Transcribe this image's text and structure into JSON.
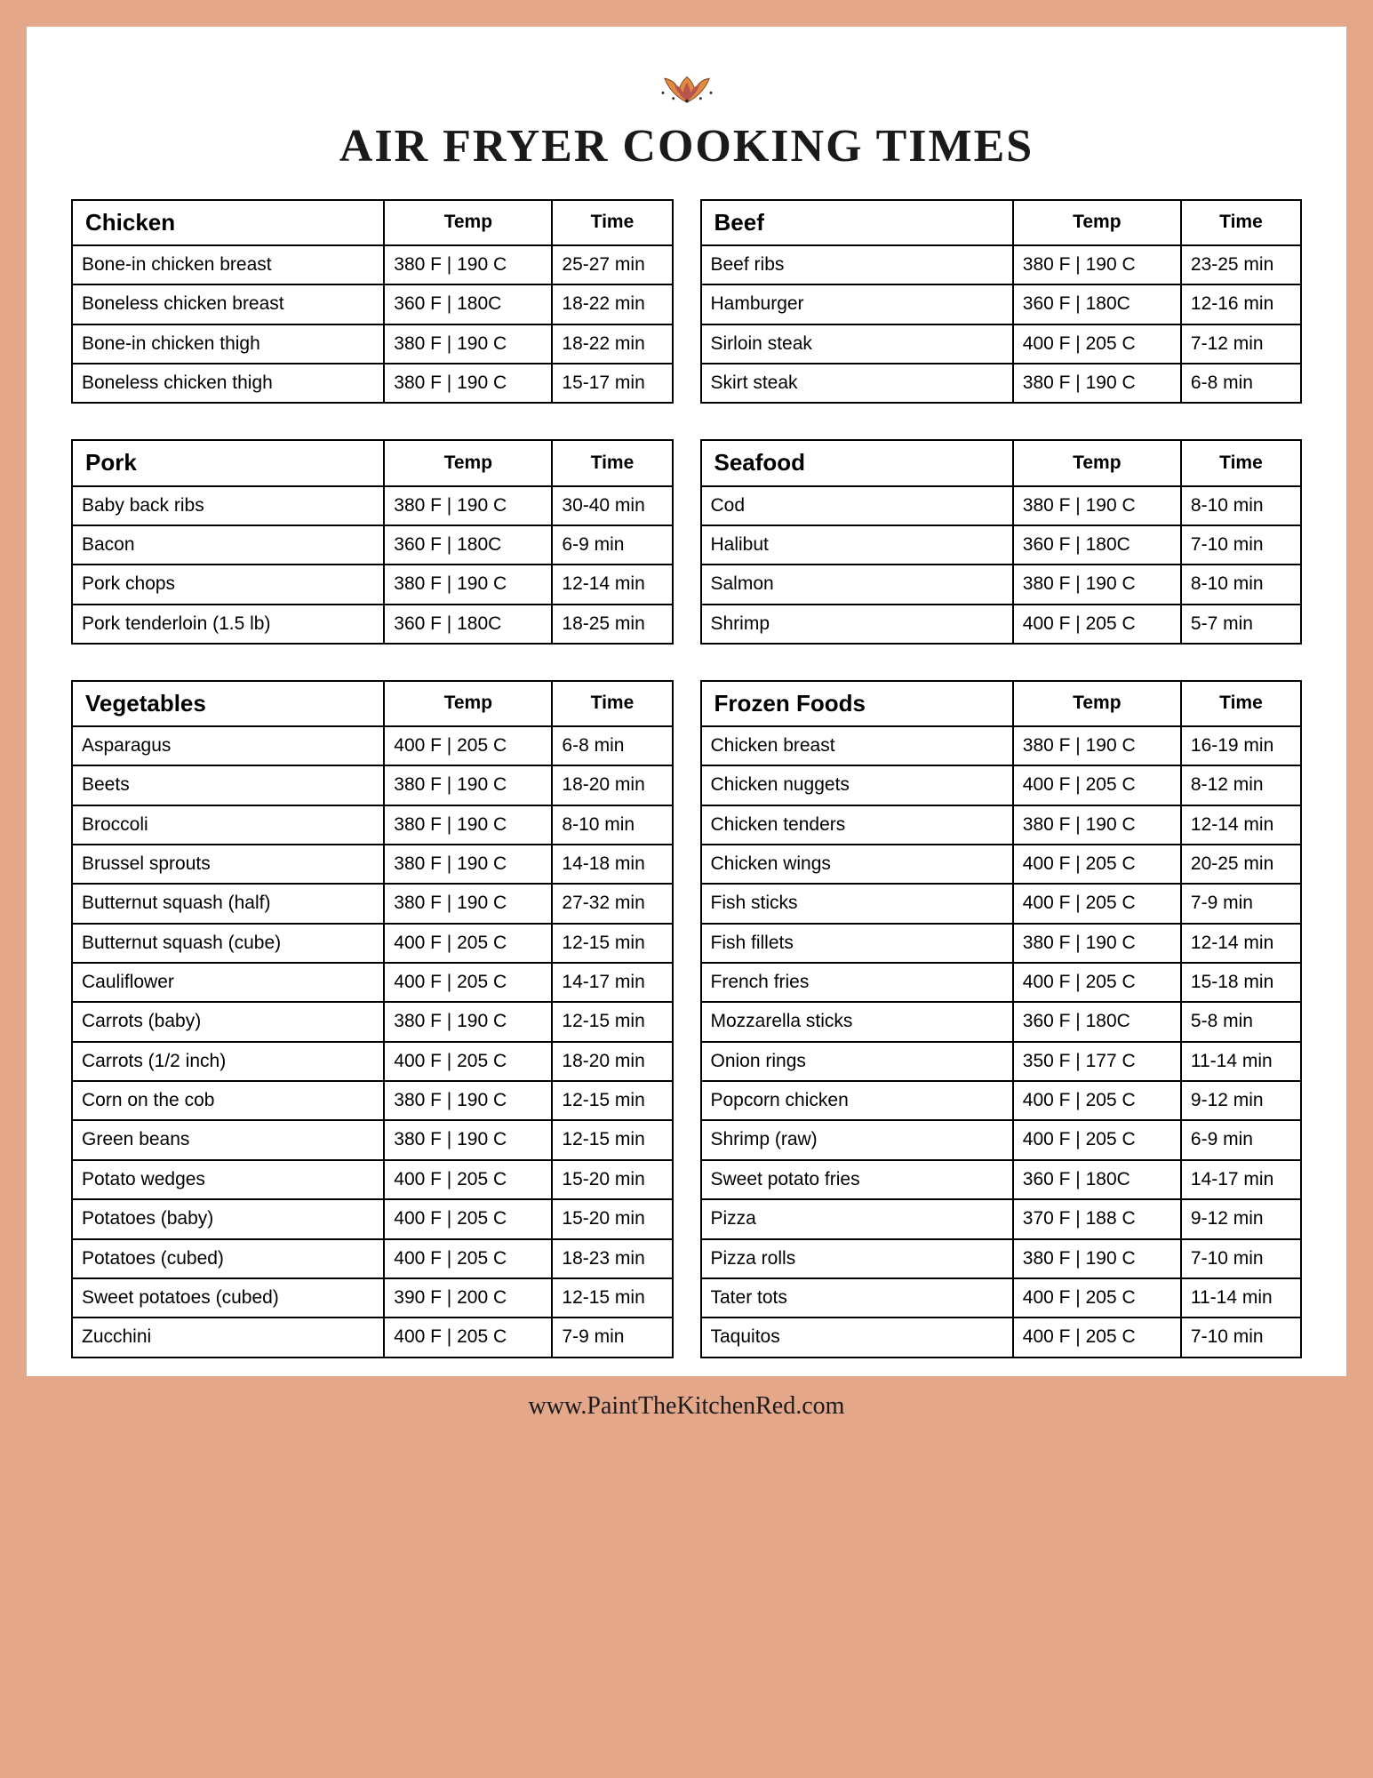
{
  "colors": {
    "border": "#e5a789",
    "page_bg": "#ffffff",
    "table_border": "#000000",
    "text": "#1a1a1a",
    "ornament_outer": "#e08b3e",
    "ornament_inner": "#b85450"
  },
  "title": "AIR FRYER COOKING TIMES",
  "footer": "www.PaintTheKitchenRed.com",
  "columns": {
    "temp": "Temp",
    "time": "Time"
  },
  "tables": [
    {
      "category": "Chicken",
      "rows": [
        {
          "item": "Bone-in chicken breast",
          "temp": "380 F | 190 C",
          "time": "25-27 min"
        },
        {
          "item": "Boneless chicken breast",
          "temp": "360 F | 180C",
          "time": "18-22 min"
        },
        {
          "item": "Bone-in chicken thigh",
          "temp": "380 F | 190 C",
          "time": "18-22 min"
        },
        {
          "item": "Boneless chicken thigh",
          "temp": "380 F | 190 C",
          "time": "15-17 min"
        }
      ]
    },
    {
      "category": "Beef",
      "rows": [
        {
          "item": "Beef ribs",
          "temp": "380 F | 190 C",
          "time": "23-25 min"
        },
        {
          "item": "Hamburger",
          "temp": "360 F | 180C",
          "time": "12-16 min"
        },
        {
          "item": "Sirloin steak",
          "temp": "400 F | 205 C",
          "time": "7-12 min"
        },
        {
          "item": "Skirt steak",
          "temp": "380 F | 190 C",
          "time": "6-8 min"
        }
      ]
    },
    {
      "category": "Pork",
      "rows": [
        {
          "item": "Baby back ribs",
          "temp": "380 F | 190 C",
          "time": "30-40 min"
        },
        {
          "item": "Bacon",
          "temp": "360 F | 180C",
          "time": "6-9 min"
        },
        {
          "item": "Pork chops",
          "temp": "380 F | 190 C",
          "time": "12-14 min"
        },
        {
          "item": "Pork tenderloin (1.5 lb)",
          "temp": "360 F | 180C",
          "time": "18-25 min"
        }
      ]
    },
    {
      "category": "Seafood",
      "rows": [
        {
          "item": "Cod",
          "temp": "380 F | 190 C",
          "time": "8-10 min"
        },
        {
          "item": "Halibut",
          "temp": "360 F | 180C",
          "time": "7-10 min"
        },
        {
          "item": "Salmon",
          "temp": "380 F | 190 C",
          "time": "8-10 min"
        },
        {
          "item": "Shrimp",
          "temp": "400 F | 205 C",
          "time": "5-7 min"
        }
      ]
    },
    {
      "category": "Vegetables",
      "rows": [
        {
          "item": "Asparagus",
          "temp": "400 F | 205 C",
          "time": "6-8 min"
        },
        {
          "item": "Beets",
          "temp": "380 F | 190 C",
          "time": "18-20 min"
        },
        {
          "item": "Broccoli",
          "temp": "380 F | 190 C",
          "time": "8-10 min"
        },
        {
          "item": "Brussel sprouts",
          "temp": "380 F | 190 C",
          "time": "14-18 min"
        },
        {
          "item": "Butternut squash (half)",
          "temp": "380 F | 190 C",
          "time": "27-32 min"
        },
        {
          "item": "Butternut squash (cube)",
          "temp": "400 F | 205 C",
          "time": "12-15 min"
        },
        {
          "item": "Cauliflower",
          "temp": "400 F | 205 C",
          "time": "14-17 min"
        },
        {
          "item": "Carrots (baby)",
          "temp": "380 F | 190 C",
          "time": "12-15 min"
        },
        {
          "item": "Carrots (1/2 inch)",
          "temp": "400 F | 205 C",
          "time": "18-20 min"
        },
        {
          "item": "Corn on the cob",
          "temp": "380 F | 190 C",
          "time": "12-15 min"
        },
        {
          "item": "Green beans",
          "temp": "380 F | 190 C",
          "time": "12-15 min"
        },
        {
          "item": "Potato wedges",
          "temp": "400 F | 205 C",
          "time": "15-20 min"
        },
        {
          "item": "Potatoes (baby)",
          "temp": "400 F | 205 C",
          "time": "15-20 min"
        },
        {
          "item": "Potatoes (cubed)",
          "temp": "400 F | 205 C",
          "time": "18-23 min"
        },
        {
          "item": "Sweet potatoes (cubed)",
          "temp": "390 F | 200 C",
          "time": "12-15 min"
        },
        {
          "item": "Zucchini",
          "temp": "400 F | 205 C",
          "time": "7-9 min"
        }
      ]
    },
    {
      "category": "Frozen Foods",
      "rows": [
        {
          "item": "Chicken breast",
          "temp": "380 F | 190 C",
          "time": "16-19 min"
        },
        {
          "item": "Chicken nuggets",
          "temp": "400 F | 205 C",
          "time": "8-12 min"
        },
        {
          "item": "Chicken tenders",
          "temp": "380 F | 190 C",
          "time": "12-14 min"
        },
        {
          "item": "Chicken wings",
          "temp": "400 F | 205 C",
          "time": "20-25 min"
        },
        {
          "item": "Fish sticks",
          "temp": "400 F | 205 C",
          "time": "7-9 min"
        },
        {
          "item": "Fish fillets",
          "temp": "380 F | 190 C",
          "time": "12-14 min"
        },
        {
          "item": "French fries",
          "temp": "400 F | 205 C",
          "time": "15-18 min"
        },
        {
          "item": "Mozzarella sticks",
          "temp": "360 F | 180C",
          "time": "5-8 min"
        },
        {
          "item": "Onion rings",
          "temp": "350 F | 177 C",
          "time": "11-14 min"
        },
        {
          "item": "Popcorn chicken",
          "temp": "400 F | 205 C",
          "time": "9-12 min"
        },
        {
          "item": "Shrimp (raw)",
          "temp": "400 F | 205 C",
          "time": "6-9 min"
        },
        {
          "item": "Sweet potato fries",
          "temp": "360 F | 180C",
          "time": "14-17 min"
        },
        {
          "item": "Pizza",
          "temp": "370 F | 188 C",
          "time": "9-12 min"
        },
        {
          "item": "Pizza rolls",
          "temp": "380 F | 190 C",
          "time": "7-10 min"
        },
        {
          "item": "Tater tots",
          "temp": "400 F | 205 C",
          "time": "11-14 min"
        },
        {
          "item": "Taquitos",
          "temp": "400 F | 205 C",
          "time": "7-10 min"
        }
      ]
    }
  ]
}
